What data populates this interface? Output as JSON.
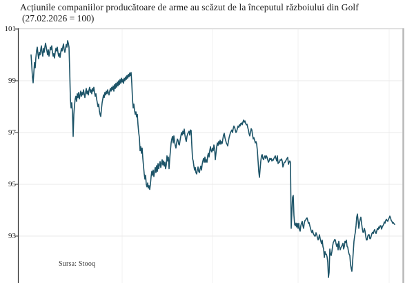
{
  "title": {
    "line1": "Acțiunile companiilor producătoare de arme au scăzut de la începutul războiului din Golf",
    "line2": "(27.02.2026 = 100)"
  },
  "source": "Sursa: Stooq",
  "colors": {
    "line": "#1d5468",
    "grid_h": "#e9e9e9",
    "grid_v": "#f2f0f0",
    "axis": "#2b2b2b",
    "top_border": "#d9d9d9",
    "right_border": "#b9b9b9",
    "text": "#1b1b1b"
  },
  "chart_data": {
    "type": "line",
    "title": "Acțiunile companiilor producătoare de arme au scăzut de la începutul războiului din Golf",
    "subtitle": "(27.02.2026 = 100)",
    "source": "Sursa: Stooq",
    "series_name": "indice-actiuni-arme",
    "xlabel": "",
    "ylabel": "",
    "ylim": [
      91.0,
      101.2
    ],
    "yticks": [
      101,
      99,
      97,
      95,
      93
    ],
    "grid": true,
    "legend_position": "none",
    "x0": 45,
    "dx": 1,
    "values": [
      100.0,
      99.6,
      99.15,
      98.92,
      99.3,
      99.7,
      99.5,
      99.9,
      100.15,
      100.3,
      100.05,
      99.85,
      100.1,
      100.0,
      100.2,
      100.35,
      100.1,
      99.95,
      100.25,
      100.1,
      100.3,
      100.45,
      100.3,
      100.15,
      100.0,
      100.2,
      99.95,
      100.1,
      100.3,
      100.2,
      100.35,
      100.1,
      99.95,
      100.05,
      99.88,
      100.1,
      100.25,
      100.15,
      100.3,
      100.1,
      99.95,
      100.05,
      99.9,
      100.1,
      100.25,
      100.15,
      100.3,
      100.42,
      100.2,
      100.1,
      100.25,
      100.4,
      100.3,
      100.55,
      100.45,
      100.3,
      99.4,
      98.3,
      97.95,
      98.15,
      97.8,
      96.85,
      97.7,
      98.05,
      98.3,
      98.4,
      98.2,
      98.5,
      98.35,
      98.55,
      98.3,
      98.45,
      98.6,
      98.4,
      98.55,
      98.45,
      98.65,
      98.5,
      98.35,
      98.55,
      98.7,
      98.5,
      98.6,
      98.45,
      98.65,
      98.75,
      98.55,
      98.65,
      98.5,
      98.7,
      98.6,
      98.75,
      98.55,
      98.4,
      98.5,
      98.3,
      98.15,
      98.0,
      98.1,
      97.85,
      97.7,
      97.62,
      97.9,
      98.15,
      98.3,
      98.45,
      98.35,
      98.55,
      98.45,
      98.6,
      98.5,
      98.65,
      98.55,
      98.45,
      98.6,
      98.7,
      98.6,
      98.75,
      98.65,
      98.8,
      98.6,
      98.85,
      98.7,
      98.9,
      98.75,
      98.95,
      98.8,
      99.0,
      98.85,
      99.05,
      98.9,
      99.1,
      98.95,
      99.05,
      98.9,
      99.1,
      99.0,
      99.15,
      99.05,
      99.2,
      99.1,
      99.25,
      99.15,
      99.3,
      99.2,
      99.32,
      98.9,
      98.3,
      97.95,
      98.1,
      97.85,
      97.7,
      97.8,
      97.6,
      97.7,
      97.3,
      97.0,
      96.8,
      96.3,
      96.45,
      96.2,
      96.4,
      96.0,
      95.7,
      95.4,
      95.2,
      95.35,
      95.0,
      94.9,
      95.05,
      94.85,
      94.95,
      94.8,
      95.0,
      95.3,
      95.5,
      95.35,
      95.55,
      95.3,
      95.5,
      95.65,
      95.45,
      95.72,
      95.5,
      95.8,
      95.6,
      95.75,
      95.88,
      95.65,
      95.8,
      95.95,
      95.75,
      95.9,
      95.7,
      95.85,
      95.6,
      95.75,
      96.1,
      95.9,
      96.05,
      95.6,
      96.0,
      96.3,
      96.6,
      96.75,
      96.85,
      96.6,
      96.87,
      96.65,
      96.5,
      96.4,
      96.6,
      96.75,
      96.7,
      96.55,
      96.52,
      96.7,
      96.85,
      97.0,
      96.9,
      97.05,
      96.95,
      97.13,
      96.9,
      96.75,
      96.65,
      96.85,
      96.95,
      97.0,
      97.05,
      96.9,
      97.1,
      97.08,
      96.5,
      96.0,
      95.9,
      95.7,
      95.55,
      95.65,
      95.45,
      95.4,
      95.55,
      95.67,
      95.5,
      95.45,
      95.6,
      95.7,
      95.55,
      95.77,
      95.9,
      96.0,
      95.85,
      96.05,
      95.85,
      95.95,
      95.85,
      96.1,
      96.2,
      96.05,
      96.3,
      96.45,
      96.3,
      96.25,
      96.4,
      96.3,
      96.52,
      96.4,
      95.95,
      96.2,
      96.45,
      96.6,
      96.5,
      96.65,
      96.55,
      96.7,
      96.55,
      96.65,
      96.58,
      96.75,
      96.9,
      96.97,
      96.8,
      96.7,
      96.6,
      96.55,
      96.48,
      96.65,
      96.8,
      96.9,
      97.0,
      97.05,
      97.1,
      97.0,
      97.15,
      97.25,
      97.2,
      97.1,
      97.0,
      97.05,
      97.15,
      97.25,
      97.2,
      97.3,
      97.25,
      97.35,
      97.37,
      97.3,
      97.4,
      97.48,
      97.4,
      97.45,
      97.35,
      97.3,
      97.32,
      97.2,
      97.1,
      96.95,
      96.87,
      97.0,
      97.15,
      97.1,
      96.9,
      96.75,
      96.8,
      96.7,
      96.6,
      96.65,
      96.55,
      96.3,
      95.9,
      95.5,
      95.27,
      95.6,
      95.9,
      96.1,
      96.15,
      96.0,
      95.95,
      96.05,
      96.1,
      96.0,
      96.1,
      96.05,
      95.95,
      95.85,
      95.9,
      96.0,
      95.95,
      96.0,
      95.9,
      95.95,
      95.93,
      96.0,
      96.05,
      96.1,
      95.99,
      95.9,
      96.1,
      95.8,
      95.85,
      95.85,
      95.95,
      95.93,
      95.98,
      95.9,
      95.67,
      95.75,
      95.85,
      95.85,
      95.9,
      95.95,
      96.0,
      96.04,
      95.77,
      95.85,
      95.9,
      95.85,
      93.3,
      93.9,
      94.5,
      94.57,
      93.8,
      93.45,
      93.4,
      93.5,
      93.35,
      93.49,
      93.3,
      93.49,
      93.25,
      93.19,
      93.4,
      93.5,
      93.57,
      93.4,
      93.3,
      93.5,
      93.6,
      93.62,
      93.68,
      93.7,
      93.6,
      93.49,
      93.52,
      93.4,
      93.3,
      93.2,
      93.13,
      93.23,
      93.1,
      93.05,
      93.0,
      93.0,
      93.13,
      93.05,
      92.95,
      92.85,
      92.93,
      93.05,
      92.9,
      92.8,
      92.7,
      92.84,
      92.6,
      92.5,
      92.17,
      92.4,
      92.3,
      92.3,
      92.2,
      92.0,
      91.4,
      91.6,
      92.5,
      92.3,
      92.25,
      92.4,
      92.6,
      92.75,
      92.8,
      92.87,
      92.85,
      92.7,
      92.6,
      92.7,
      92.47,
      92.8,
      92.6,
      92.47,
      92.55,
      92.6,
      92.65,
      92.72,
      92.5,
      92.6,
      92.8,
      92.75,
      92.84,
      92.6,
      92.57,
      92.4,
      92.3,
      92.25,
      91.9,
      91.75,
      91.64,
      92.0,
      92.4,
      92.8,
      93.0,
      93.15,
      93.4,
      93.73,
      93.85,
      93.6,
      93.3,
      93.5,
      93.65,
      93.73,
      93.5,
      93.3,
      93.15,
      93.15,
      93.3,
      93.2,
      93.0,
      92.85,
      92.85,
      93.0,
      93.05,
      93.05,
      92.9,
      92.9,
      93.0,
      93.1,
      93.15,
      93.1,
      93.2,
      93.25,
      93.15,
      93.1,
      93.2,
      93.3,
      93.25,
      93.35,
      93.3,
      93.4,
      93.4,
      93.27,
      93.35,
      93.4,
      93.45,
      93.55,
      93.5,
      93.6,
      93.65,
      93.6,
      93.57,
      93.65,
      93.7,
      93.77,
      93.7,
      93.6,
      93.57,
      93.5,
      93.52,
      93.48,
      93.45
    ]
  }
}
